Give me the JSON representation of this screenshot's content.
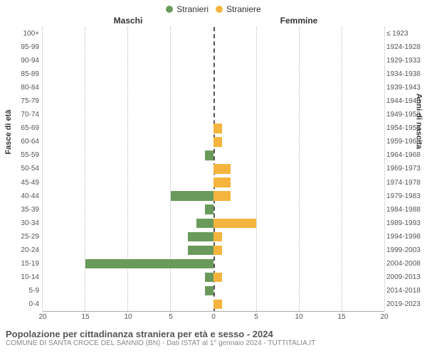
{
  "legend": {
    "male": {
      "label": "Stranieri",
      "color": "#6a9a5b"
    },
    "female": {
      "label": "Straniere",
      "color": "#f4b43e"
    }
  },
  "columns": {
    "left": "Maschi",
    "right": "Femmine"
  },
  "axis_titles": {
    "left": "Fasce di età",
    "right": "Anni di nascita"
  },
  "x_axis": {
    "max": 20,
    "ticks": [
      0,
      5,
      10,
      15,
      20
    ]
  },
  "grid_color": "#bbbbbb",
  "center_line_color": "#555555",
  "background_color": "#ffffff",
  "bar_height_pct": 70,
  "rows": [
    {
      "age": "100+",
      "birth": "≤ 1923",
      "m": 0,
      "f": 0
    },
    {
      "age": "95-99",
      "birth": "1924-1928",
      "m": 0,
      "f": 0
    },
    {
      "age": "90-94",
      "birth": "1929-1933",
      "m": 0,
      "f": 0
    },
    {
      "age": "85-89",
      "birth": "1934-1938",
      "m": 0,
      "f": 0
    },
    {
      "age": "80-84",
      "birth": "1939-1943",
      "m": 0,
      "f": 0
    },
    {
      "age": "75-79",
      "birth": "1944-1948",
      "m": 0,
      "f": 0
    },
    {
      "age": "70-74",
      "birth": "1949-1953",
      "m": 0,
      "f": 0
    },
    {
      "age": "65-69",
      "birth": "1954-1958",
      "m": 0,
      "f": 1
    },
    {
      "age": "60-64",
      "birth": "1959-1963",
      "m": 0,
      "f": 1
    },
    {
      "age": "55-59",
      "birth": "1964-1968",
      "m": 1,
      "f": 0
    },
    {
      "age": "50-54",
      "birth": "1969-1973",
      "m": 0,
      "f": 2
    },
    {
      "age": "45-49",
      "birth": "1974-1978",
      "m": 0,
      "f": 2
    },
    {
      "age": "40-44",
      "birth": "1979-1983",
      "m": 5,
      "f": 2
    },
    {
      "age": "35-39",
      "birth": "1984-1988",
      "m": 1,
      "f": 0
    },
    {
      "age": "30-34",
      "birth": "1989-1993",
      "m": 2,
      "f": 5
    },
    {
      "age": "25-29",
      "birth": "1994-1998",
      "m": 3,
      "f": 1
    },
    {
      "age": "20-24",
      "birth": "1999-2003",
      "m": 3,
      "f": 1
    },
    {
      "age": "15-19",
      "birth": "2004-2008",
      "m": 15,
      "f": 0
    },
    {
      "age": "10-14",
      "birth": "2009-2013",
      "m": 1,
      "f": 1
    },
    {
      "age": "5-9",
      "birth": "2014-2018",
      "m": 1,
      "f": 0
    },
    {
      "age": "0-4",
      "birth": "2019-2023",
      "m": 0,
      "f": 1
    }
  ],
  "footer": {
    "title": "Popolazione per cittadinanza straniera per età e sesso - 2024",
    "subtitle": "COMUNE DI SANTA CROCE DEL SANNIO (BN) - Dati ISTAT al 1° gennaio 2024 - TUTTITALIA.IT"
  }
}
